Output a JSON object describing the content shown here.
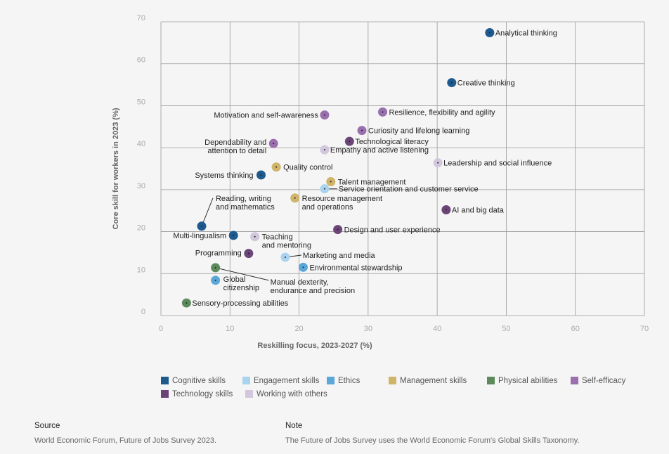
{
  "chart_data": {
    "type": "scatter",
    "xlabel": "Reskilling focus, 2023-2027 (%)",
    "ylabel": "Core skill for workers in 2023 (%)",
    "xlim": [
      0,
      70
    ],
    "ylim": [
      0,
      70
    ],
    "xticks": [
      0,
      10,
      20,
      30,
      40,
      50,
      60,
      70
    ],
    "yticks": [
      0,
      10,
      20,
      30,
      40,
      50,
      60,
      70
    ],
    "categories": [
      {
        "key": "cognitive",
        "name": "Cognitive skills",
        "color": "#1f5a8f"
      },
      {
        "key": "engagement",
        "name": "Engagement skills",
        "color": "#a9d3ee"
      },
      {
        "key": "ethics",
        "name": "Ethics",
        "color": "#5aa7d9"
      },
      {
        "key": "management",
        "name": "Management skills",
        "color": "#cfb46a"
      },
      {
        "key": "physical",
        "name": "Physical abilities",
        "color": "#5c8a5c"
      },
      {
        "key": "selfefficacy",
        "name": "Self-efficacy",
        "color": "#9a6fae"
      },
      {
        "key": "technology",
        "name": "Technology skills",
        "color": "#6b4478"
      },
      {
        "key": "workingothers",
        "name": "Working with others",
        "color": "#d3c7dd"
      }
    ],
    "points": [
      {
        "label": "Analytical thinking",
        "x": 47.6,
        "y": 67.4,
        "cat": "cognitive"
      },
      {
        "label": "Creative thinking",
        "x": 42.1,
        "y": 55.5,
        "cat": "cognitive"
      },
      {
        "label": "Resilience, flexibility and agility",
        "x": 32.1,
        "y": 48.5,
        "cat": "selfefficacy"
      },
      {
        "label": "Motivation and self-awareness",
        "x": 23.7,
        "y": 47.8,
        "cat": "selfefficacy"
      },
      {
        "label": "Curiosity and lifelong learning",
        "x": 29.1,
        "y": 44.1,
        "cat": "selfefficacy"
      },
      {
        "label": "Technological literacy",
        "x": 27.3,
        "y": 41.5,
        "cat": "technology"
      },
      {
        "label": "Dependability and attention to detail",
        "x": 16.3,
        "y": 41.0,
        "cat": "selfefficacy"
      },
      {
        "label": "Empathy and active listening",
        "x": 23.7,
        "y": 39.5,
        "cat": "workingothers"
      },
      {
        "label": "Leadership and social influence",
        "x": 40.1,
        "y": 36.4,
        "cat": "workingothers"
      },
      {
        "label": "Quality control",
        "x": 16.7,
        "y": 35.4,
        "cat": "management"
      },
      {
        "label": "Systems thinking",
        "x": 14.5,
        "y": 33.5,
        "cat": "cognitive"
      },
      {
        "label": "Talent management",
        "x": 24.6,
        "y": 31.9,
        "cat": "management"
      },
      {
        "label": "Service orientation and customer service",
        "x": 23.7,
        "y": 30.2,
        "cat": "engagement"
      },
      {
        "label": "Resource management and operations",
        "x": 19.4,
        "y": 28.0,
        "cat": "management"
      },
      {
        "label": "AI and big data",
        "x": 41.3,
        "y": 25.2,
        "cat": "technology"
      },
      {
        "label": "Reading, writing and mathematics",
        "x": 5.9,
        "y": 21.3,
        "cat": "cognitive"
      },
      {
        "label": "Design and user experience",
        "x": 25.6,
        "y": 20.5,
        "cat": "technology"
      },
      {
        "label": "Multi-lingualism",
        "x": 10.5,
        "y": 19.1,
        "cat": "cognitive"
      },
      {
        "label": "Teaching and mentoring",
        "x": 13.6,
        "y": 18.8,
        "cat": "workingothers"
      },
      {
        "label": "Programming",
        "x": 12.7,
        "y": 14.8,
        "cat": "technology"
      },
      {
        "label": "Marketing and media",
        "x": 18.0,
        "y": 13.9,
        "cat": "engagement"
      },
      {
        "label": "Environmental stewardship",
        "x": 20.6,
        "y": 11.5,
        "cat": "ethics"
      },
      {
        "label": "Manual dexterity, endurance and precision",
        "x": 7.9,
        "y": 11.4,
        "cat": "physical"
      },
      {
        "label": "Global citizenship",
        "x": 7.9,
        "y": 8.4,
        "cat": "ethics"
      },
      {
        "label": "Sensory-processing abilities",
        "x": 3.7,
        "y": 3.0,
        "cat": "physical"
      }
    ]
  },
  "footer": {
    "source_heading": "Source",
    "source_text": "World Economic Forum, Future of Jobs Survey 2023.",
    "note_heading": "Note",
    "note_text": "The Future of Jobs Survey uses the World Economic Forum's Global Skills Taxonomy."
  }
}
